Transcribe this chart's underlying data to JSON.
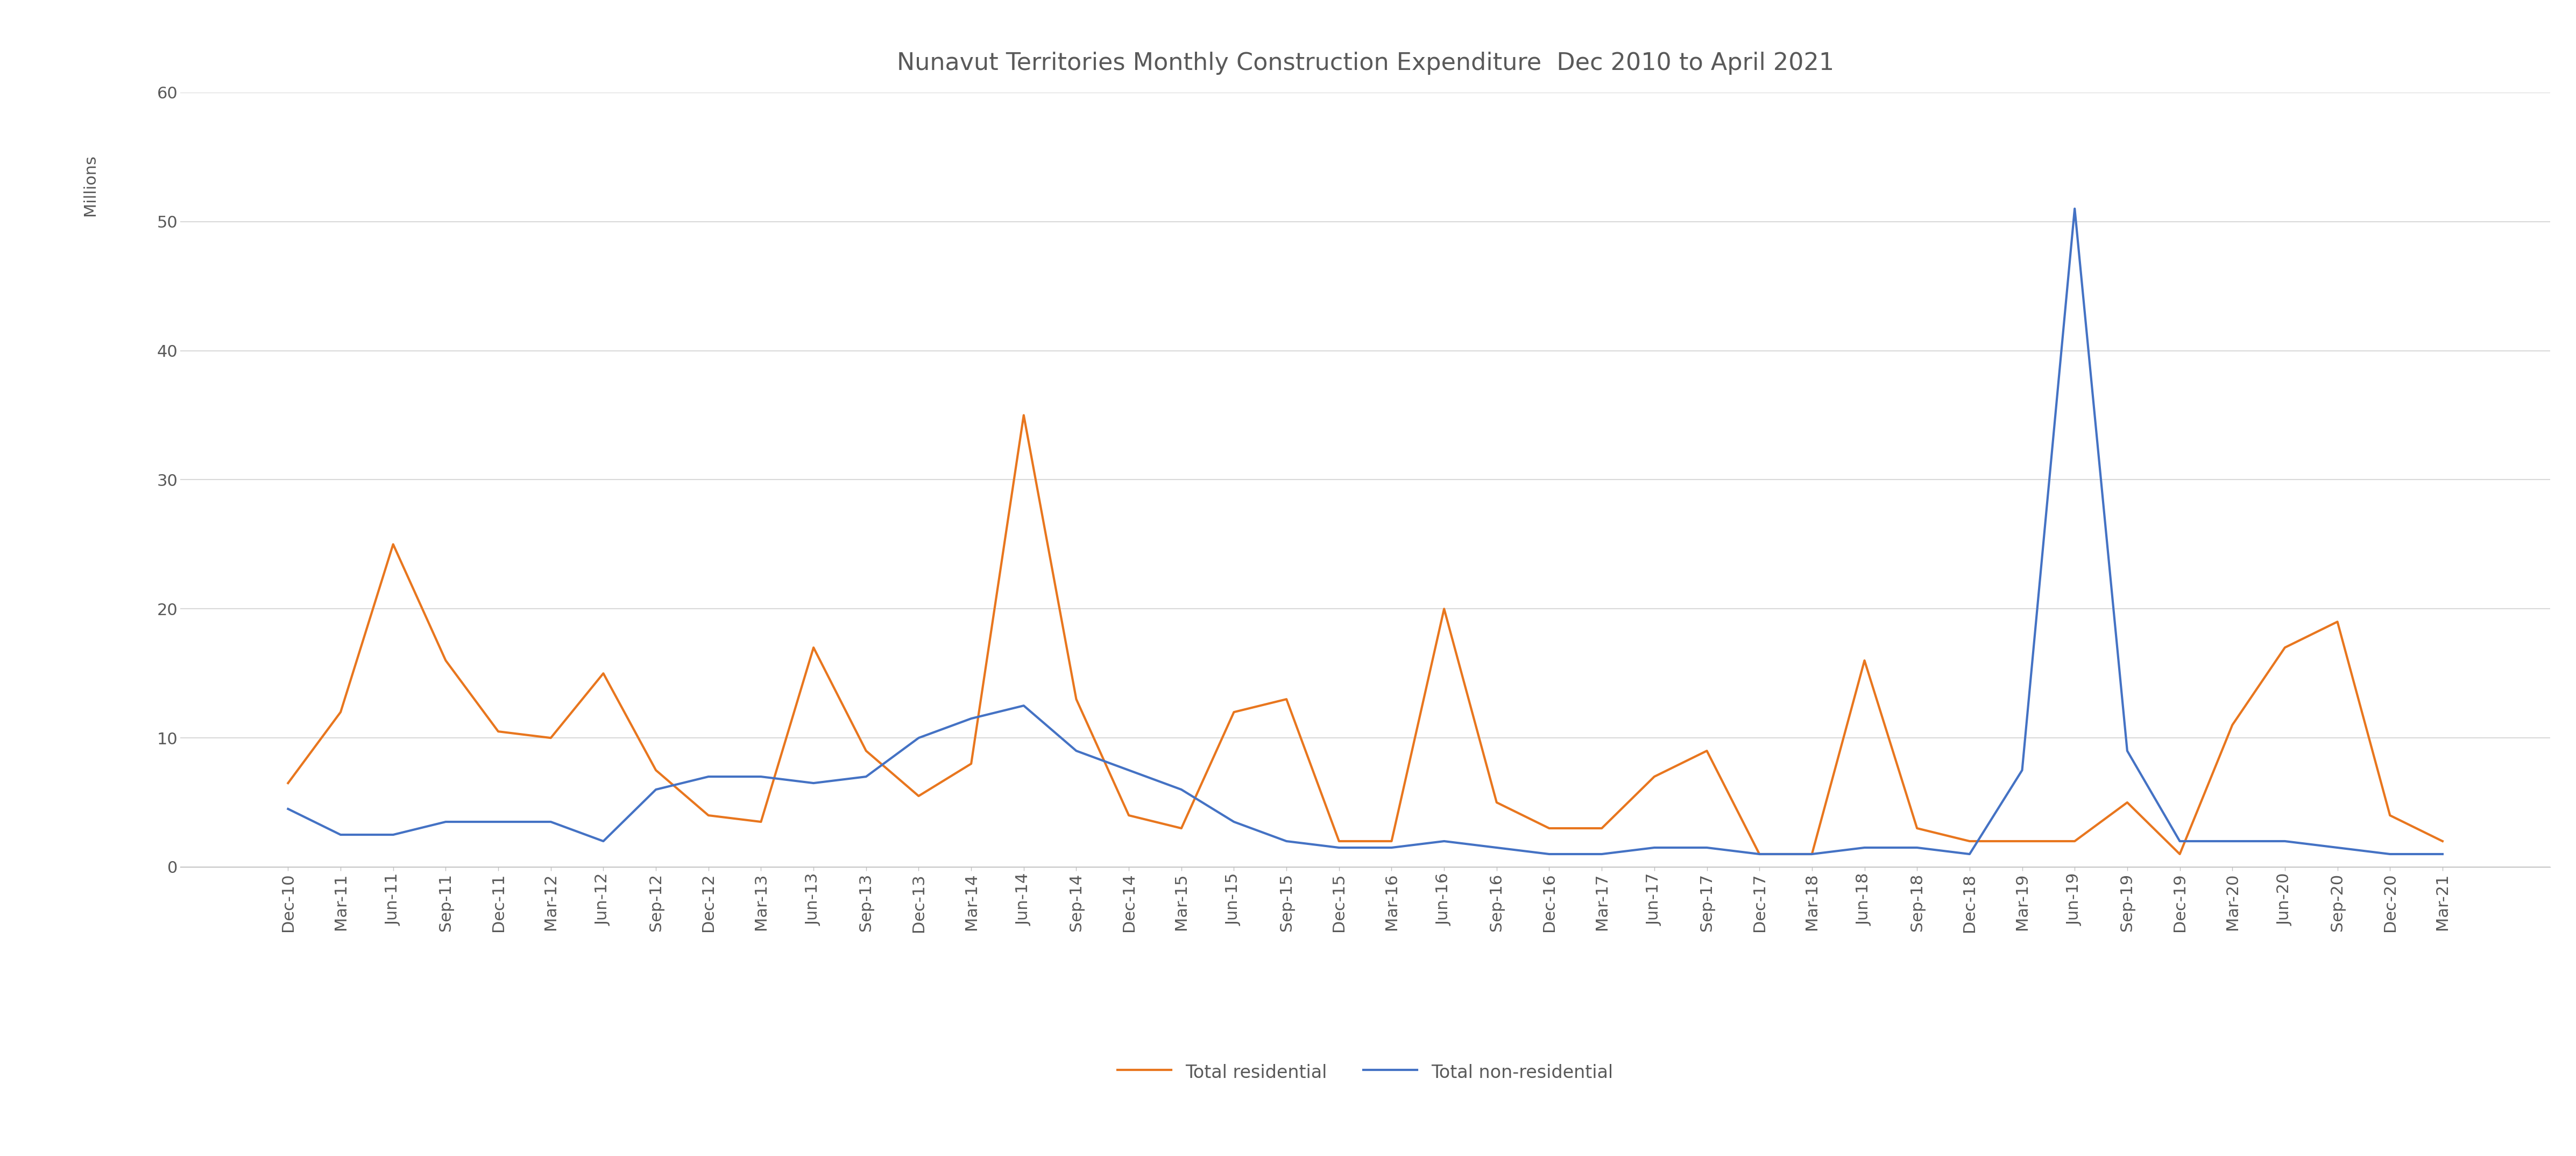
{
  "title": "Nunavut Territories Monthly Construction Expenditure  Dec 2010 to April 2021",
  "ylabel": "Millions",
  "ylim": [
    0,
    60
  ],
  "yticks": [
    0,
    10,
    20,
    30,
    40,
    50,
    60
  ],
  "legend_labels": [
    "Total residential",
    "Total non-residential"
  ],
  "line_colors": [
    "#E8761E",
    "#4472C4"
  ],
  "background_color": "#FFFFFF",
  "labels": [
    "Dec-10",
    "Mar-11",
    "Jun-11",
    "Sep-11",
    "Dec-11",
    "Mar-12",
    "Jun-12",
    "Sep-12",
    "Dec-12",
    "Mar-13",
    "Jun-13",
    "Sep-13",
    "Dec-13",
    "Mar-14",
    "Jun-14",
    "Sep-14",
    "Dec-14",
    "Mar-15",
    "Jun-15",
    "Sep-15",
    "Dec-15",
    "Mar-16",
    "Jun-16",
    "Sep-16",
    "Dec-16",
    "Mar-17",
    "Jun-17",
    "Sep-17",
    "Dec-17",
    "Mar-18",
    "Jun-18",
    "Sep-18",
    "Dec-18",
    "Mar-19",
    "Jun-19",
    "Sep-19",
    "Dec-19",
    "Mar-20",
    "Jun-20",
    "Sep-20",
    "Dec-20",
    "Mar-21"
  ],
  "residential": [
    6.5,
    12,
    25,
    16,
    10.5,
    10,
    15,
    7.5,
    4,
    3.5,
    17,
    9,
    5.5,
    8,
    35,
    13,
    4,
    3,
    12,
    13,
    2,
    2,
    20,
    5,
    3,
    3,
    7,
    9,
    1,
    1,
    16,
    3,
    2,
    2,
    2,
    5,
    1,
    11,
    17,
    19,
    4,
    2
  ],
  "non_residential": [
    4.5,
    2.5,
    2.5,
    3.5,
    3.5,
    3.5,
    2,
    6,
    7,
    7,
    6.5,
    7,
    10,
    11.5,
    12.5,
    9,
    7.5,
    6,
    3.5,
    2,
    1.5,
    1.5,
    2,
    1.5,
    1,
    1,
    1.5,
    1.5,
    1,
    1,
    1.5,
    1.5,
    1,
    7.5,
    51,
    9,
    2,
    2,
    2,
    1.5,
    1,
    1
  ],
  "title_fontsize": 32,
  "tick_fontsize": 22,
  "ylabel_fontsize": 22,
  "legend_fontsize": 24,
  "line_width": 3.0
}
